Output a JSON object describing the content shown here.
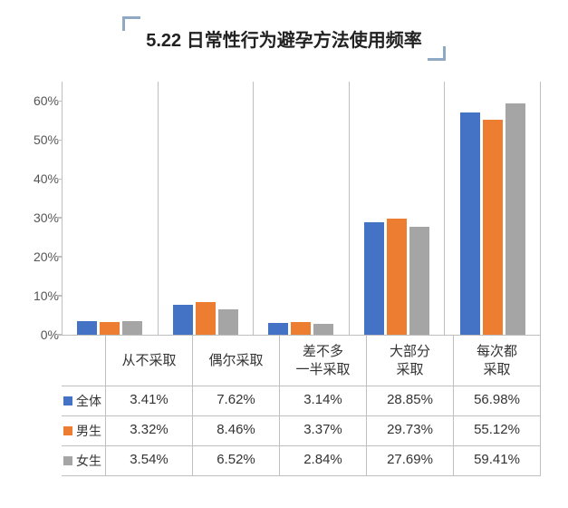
{
  "title": "5.22 日常性行为避孕方法使用频率",
  "chart": {
    "type": "bar",
    "ymax": 65,
    "ytick_step": 10,
    "ytick_count": 7,
    "categories": [
      "从不采取",
      "偶尔采取",
      "差不多\n一半采取",
      "大部分\n采取",
      "每次都\n采取"
    ],
    "series": [
      {
        "name": "全体",
        "color": "#4472c4",
        "values": [
          3.41,
          7.62,
          3.14,
          28.85,
          56.98
        ]
      },
      {
        "name": "男生",
        "color": "#ed7d31",
        "values": [
          3.32,
          8.46,
          3.37,
          29.73,
          55.12
        ]
      },
      {
        "name": "女生",
        "color": "#a5a5a5",
        "values": [
          3.54,
          6.52,
          2.84,
          27.69,
          59.41
        ]
      }
    ],
    "border_color": "#bfbfbf",
    "label_fontsize": 15,
    "tick_fontsize": 14,
    "background_color": "#ffffff"
  }
}
